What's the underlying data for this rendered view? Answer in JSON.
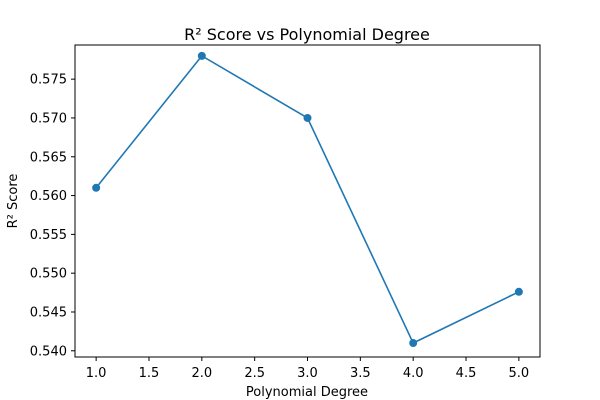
{
  "chart_data": {
    "type": "line",
    "title": "R² Score vs Polynomial Degree",
    "xlabel": "Polynomial Degree",
    "ylabel": "R² Score",
    "x": [
      1.0,
      2.0,
      3.0,
      4.0,
      5.0
    ],
    "series": [
      {
        "values": [
          0.561,
          0.578,
          0.57,
          0.541,
          0.5476
        ],
        "color": "#1f77b4",
        "marker": "circle"
      }
    ],
    "xlim": [
      0.8,
      5.2
    ],
    "ylim": [
      0.5392,
      0.5794
    ],
    "xticks": [
      1.0,
      1.5,
      2.0,
      2.5,
      3.0,
      3.5,
      4.0,
      4.5,
      5.0
    ],
    "xtick_labels": [
      "1.0",
      "1.5",
      "2.0",
      "2.5",
      "3.0",
      "3.5",
      "4.0",
      "4.5",
      "5.0"
    ],
    "yticks": [
      0.54,
      0.545,
      0.55,
      0.555,
      0.56,
      0.565,
      0.57,
      0.575
    ],
    "ytick_labels": [
      "0.540",
      "0.545",
      "0.550",
      "0.555",
      "0.560",
      "0.565",
      "0.570",
      "0.575"
    ],
    "grid": false,
    "legend": false
  }
}
